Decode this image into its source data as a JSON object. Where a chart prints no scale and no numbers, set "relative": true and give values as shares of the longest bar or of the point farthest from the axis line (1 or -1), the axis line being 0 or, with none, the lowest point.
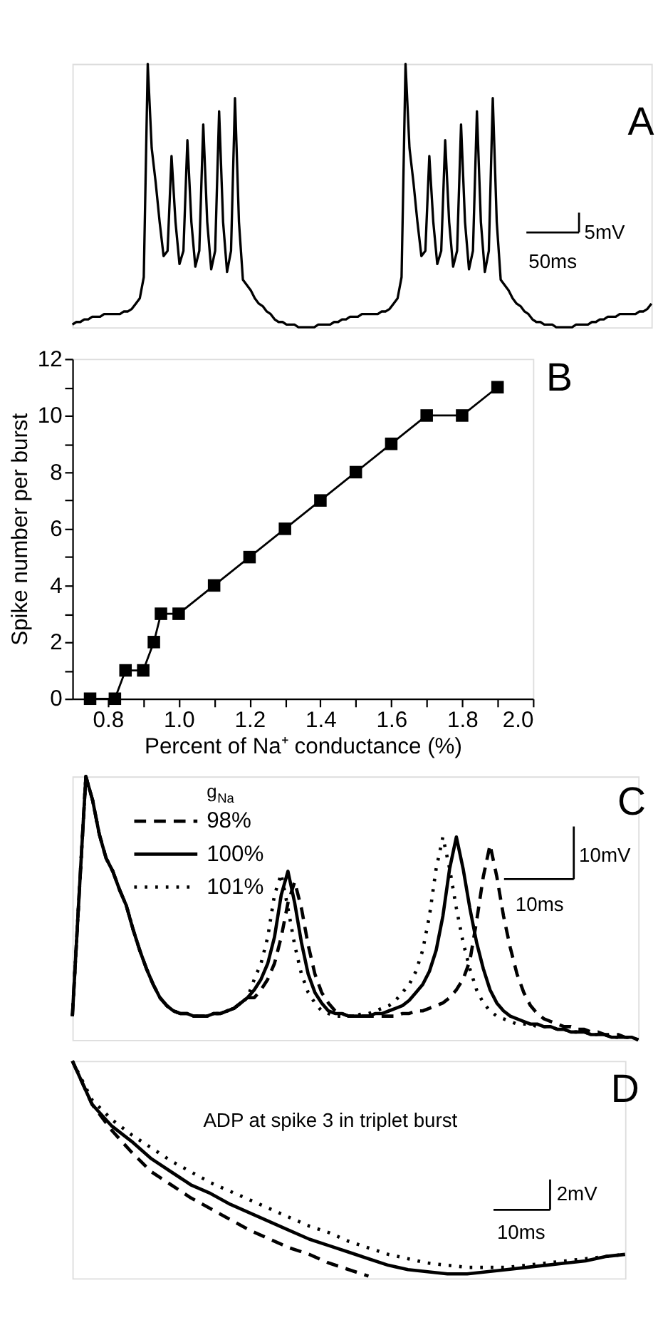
{
  "chart_data": [
    {
      "type": "line",
      "relative": true,
      "annotations": [
        "A",
        "5mV",
        "50ms"
      ],
      "categories": [
        null,
        null,
        null,
        null,
        null,
        null,
        null,
        null,
        null,
        null,
        null,
        null,
        null,
        null,
        null,
        null,
        null,
        null,
        null,
        null,
        null,
        null,
        null,
        null,
        null,
        null,
        null,
        null,
        null,
        null,
        null,
        null,
        null,
        null,
        null,
        null,
        null,
        null,
        null,
        null,
        null,
        null,
        null,
        null,
        null,
        null,
        null,
        null,
        null,
        null,
        null,
        null,
        null,
        null,
        null,
        null,
        null,
        null,
        null,
        null,
        null,
        null,
        null,
        null,
        null,
        null,
        null,
        null,
        null,
        null,
        null,
        null,
        null,
        null,
        null,
        null,
        null,
        null,
        null,
        null,
        null,
        null,
        null,
        null,
        null,
        null,
        null,
        null,
        null,
        null,
        null,
        null,
        null,
        null,
        null,
        null,
        null,
        null,
        null,
        null,
        null,
        null,
        null,
        null,
        null,
        null,
        null,
        null,
        null,
        null,
        null,
        null,
        null,
        null,
        null,
        null,
        null,
        null,
        null,
        null,
        null,
        null,
        null,
        null,
        null,
        null,
        null,
        null,
        null,
        null,
        null,
        null,
        null,
        null,
        null,
        null,
        null,
        null,
        null,
        null,
        null,
        null,
        null,
        null,
        null,
        null,
        null
      ],
      "series": [
        {
          "color": "#000000",
          "line_style": "solid",
          "values": [
            0.01,
            0.02,
            0.02,
            0.03,
            0.03,
            0.04,
            0.04,
            0.04,
            0.05,
            0.05,
            0.05,
            0.05,
            0.05,
            0.06,
            0.06,
            0.07,
            0.09,
            0.11,
            0.19,
            1,
            0.68,
            0.55,
            0.4,
            0.27,
            0.29,
            0.65,
            0.4,
            0.24,
            0.29,
            0.71,
            0.4,
            0.23,
            0.29,
            0.77,
            0.4,
            0.22,
            0.29,
            0.82,
            0.4,
            0.21,
            0.29,
            0.87,
            0.4,
            0.18,
            0.16,
            0.14,
            0.11,
            0.09,
            0.08,
            0.06,
            0.05,
            0.03,
            0.02,
            0.02,
            0.01,
            0.01,
            0.01,
            0,
            0,
            0,
            0,
            0,
            0.01,
            0.01,
            0.01,
            0.01,
            0.02,
            0.02,
            0.03,
            0.03,
            0.04,
            0.04,
            0.04,
            0.05,
            0.05,
            0.05,
            0.05,
            0.05,
            0.06,
            0.06,
            0.07,
            0.09,
            0.11,
            0.19,
            1,
            0.68,
            0.55,
            0.4,
            0.27,
            0.29,
            0.65,
            0.4,
            0.24,
            0.29,
            0.71,
            0.4,
            0.23,
            0.29,
            0.77,
            0.4,
            0.22,
            0.29,
            0.82,
            0.4,
            0.21,
            0.29,
            0.87,
            0.4,
            0.18,
            0.16,
            0.14,
            0.11,
            0.09,
            0.08,
            0.06,
            0.05,
            0.03,
            0.02,
            0.02,
            0.01,
            0.01,
            0.01,
            0,
            0,
            0,
            0,
            0,
            0.01,
            0.01,
            0.01,
            0.01,
            0.02,
            0.02,
            0.03,
            0.03,
            0.04,
            0.04,
            0.04,
            0.05,
            0.05,
            0.05,
            0.05,
            0.05,
            0.06,
            0.06,
            0.07,
            0.09
          ]
        }
      ]
    },
    {
      "type": "line",
      "marker": "square",
      "color": "#000000",
      "grid": false,
      "annotations": [
        "B"
      ],
      "xlabel": "Percent of Na⁺ conductance (%)",
      "ylabel": "Spike number per burst",
      "x": [
        0.75,
        0.82,
        0.85,
        0.9,
        0.93,
        0.95,
        1.0,
        1.1,
        1.2,
        1.3,
        1.4,
        1.5,
        1.6,
        1.7,
        1.8,
        1.9
      ],
      "values": [
        0,
        0,
        1,
        1,
        2,
        3,
        3,
        4,
        5,
        6,
        7,
        8,
        9,
        10,
        10,
        11
      ],
      "xlim": [
        0.7,
        2.0
      ],
      "ylim": [
        0,
        12
      ],
      "xticks": [
        0.8,
        {
          "value": 0.9,
          "label": null
        },
        {
          "value": 1.0,
          "label": "1.0"
        },
        {
          "value": 1.1,
          "label": null
        },
        1.2,
        {
          "value": 1.3,
          "label": null
        },
        1.4,
        {
          "value": 1.5,
          "label": null
        },
        1.6,
        {
          "value": 1.7,
          "label": null
        },
        1.8,
        {
          "value": 1.9,
          "label": null
        },
        {
          "value": 2.0,
          "label": "2.0"
        }
      ],
      "yticks": [
        0,
        {
          "value": 1,
          "label": null
        },
        2,
        {
          "value": 3,
          "label": null
        },
        4,
        {
          "value": 5,
          "label": null
        },
        6,
        {
          "value": 7,
          "label": null
        },
        8,
        {
          "value": 9,
          "label": null
        },
        10,
        {
          "value": 11,
          "label": null
        },
        12
      ]
    },
    {
      "type": "line",
      "relative": true,
      "legend": "top left",
      "legend_title": "g$_{Na}$",
      "annotations": [
        "C",
        "10mV",
        "10ms"
      ],
      "categories": [
        null,
        null,
        null,
        null,
        null,
        null,
        null,
        null,
        null,
        null,
        null,
        null,
        null,
        null,
        null,
        null,
        null,
        null,
        null,
        null,
        null,
        null,
        null,
        null,
        null,
        null,
        null,
        null,
        null,
        null,
        null,
        null,
        null,
        null,
        null,
        null,
        null,
        null,
        null,
        null,
        null,
        null,
        null,
        null,
        null,
        null,
        null,
        null,
        null,
        null,
        null,
        null,
        null,
        null,
        null,
        null,
        null,
        null,
        null,
        null,
        null,
        null,
        null,
        null,
        null,
        null,
        null,
        null,
        null,
        null,
        null,
        null,
        null,
        null,
        null,
        null,
        null,
        null,
        null,
        null,
        null,
        null,
        null,
        null,
        null
      ],
      "series": [
        {
          "name": "98%",
          "color": "#000000",
          "line_style": "dashed",
          "values": [
            0.09,
            0.55,
            1,
            0.91,
            0.78,
            0.69,
            0.64,
            0.57,
            0.51,
            0.42,
            0.34,
            0.27,
            0.21,
            0.16,
            0.13,
            0.11,
            0.1,
            0.1,
            0.09,
            0.09,
            0.09,
            0.1,
            0.1,
            0.11,
            0.12,
            0.14,
            0.16,
            0.16,
            0.19,
            0.23,
            0.29,
            0.39,
            0.52,
            0.6,
            0.5,
            0.36,
            0.25,
            0.18,
            0.14,
            0.11,
            0.1,
            0.09,
            0.09,
            0.09,
            0.09,
            0.09,
            0.09,
            0.09,
            0.09,
            0.1,
            0.1,
            0.11,
            0.11,
            0.12,
            0.13,
            0.14,
            0.16,
            0.19,
            0.23,
            0.3,
            0.45,
            0.62,
            0.74,
            0.62,
            0.47,
            0.35,
            0.25,
            0.18,
            0.13,
            0.1,
            0.08,
            0.07,
            0.06,
            0.05,
            0.05,
            0.04,
            0.04,
            0.03,
            0.03,
            0.02,
            0.02,
            0.02,
            0.01,
            0.01,
            0
          ]
        },
        {
          "name": "100%",
          "color": "#000000",
          "line_style": "solid",
          "values": [
            0.09,
            0.55,
            1,
            0.91,
            0.78,
            0.69,
            0.64,
            0.57,
            0.51,
            0.42,
            0.34,
            0.27,
            0.21,
            0.16,
            0.13,
            0.11,
            0.1,
            0.1,
            0.09,
            0.09,
            0.09,
            0.1,
            0.1,
            0.11,
            0.12,
            0.14,
            0.16,
            0.19,
            0.23,
            0.29,
            0.39,
            0.55,
            0.64,
            0.52,
            0.37,
            0.25,
            0.18,
            0.14,
            0.11,
            0.1,
            0.1,
            0.09,
            0.09,
            0.09,
            0.09,
            0.1,
            0.1,
            0.11,
            0.12,
            0.13,
            0.15,
            0.18,
            0.21,
            0.26,
            0.34,
            0.47,
            0.65,
            0.77,
            0.65,
            0.5,
            0.37,
            0.27,
            0.19,
            0.14,
            0.11,
            0.09,
            0.08,
            0.07,
            0.06,
            0.06,
            0.05,
            0.05,
            0.04,
            0.04,
            0.03,
            0.03,
            0.03,
            0.02,
            0.02,
            0.02,
            0.01,
            0.01,
            0.01,
            0.01,
            0
          ]
        },
        {
          "name": "101%",
          "color": "#000000",
          "line_style": "dotted",
          "values": [
            0.09,
            0.55,
            1,
            0.91,
            0.78,
            0.69,
            0.64,
            0.57,
            0.51,
            0.42,
            0.34,
            0.27,
            0.21,
            0.16,
            0.13,
            0.11,
            0.1,
            0.1,
            0.09,
            0.09,
            0.09,
            0.1,
            0.1,
            0.11,
            0.12,
            0.14,
            0.16,
            0.23,
            0.29,
            0.39,
            0.55,
            0.63,
            0.5,
            0.36,
            0.25,
            0.18,
            0.14,
            0.11,
            0.1,
            0.09,
            0.09,
            0.09,
            0.09,
            0.1,
            0.1,
            0.11,
            0.12,
            0.13,
            0.15,
            0.18,
            0.21,
            0.26,
            0.34,
            0.47,
            0.65,
            0.77,
            0.65,
            0.5,
            0.37,
            0.27,
            0.19,
            0.14,
            0.11,
            0.09,
            0.08,
            0.07,
            0.06,
            0.06,
            0.06,
            0.05,
            0.05,
            0.05,
            0.04,
            0.04,
            0.03,
            0.03,
            0.03,
            0.02,
            0.02,
            0.02,
            0.01,
            0.01,
            0.01,
            0.01,
            0
          ]
        }
      ]
    },
    {
      "type": "line",
      "relative": true,
      "annotations": [
        "D",
        "ADP at spike 3 in triplet burst",
        "2mV",
        "10ms"
      ],
      "categories": [
        null,
        null,
        null,
        null,
        null,
        null,
        null,
        null,
        null,
        null,
        null,
        null,
        null,
        null,
        null,
        null,
        null,
        null,
        null,
        null,
        null,
        null,
        null,
        null,
        null,
        null,
        null,
        null,
        null
      ],
      "series": [
        {
          "color": "#000000",
          "line_style": "dashed",
          "values": [
            1,
            0.8,
            0.68,
            0.58,
            0.49,
            0.43,
            0.37,
            0.32,
            0.27,
            0.22,
            0.18,
            0.14,
            0.11,
            0.07,
            0.04,
            0.01,
            null,
            null,
            null,
            null,
            null,
            null,
            null,
            null,
            null,
            null,
            null,
            null,
            null
          ]
        },
        {
          "color": "#000000",
          "line_style": "solid",
          "values": [
            1,
            0.8,
            0.7,
            0.63,
            0.55,
            0.49,
            0.43,
            0.39,
            0.34,
            0.3,
            0.26,
            0.22,
            0.18,
            0.15,
            0.12,
            0.09,
            0.06,
            0.04,
            0.03,
            0.02,
            0.02,
            0.03,
            0.04,
            0.05,
            0.06,
            0.07,
            0.08,
            0.1,
            0.11
          ]
        },
        {
          "color": "#000000",
          "line_style": "dotted",
          "values": [
            1,
            0.82,
            0.73,
            0.66,
            0.6,
            0.54,
            0.49,
            0.44,
            0.4,
            0.36,
            0.32,
            0.28,
            0.24,
            0.21,
            0.17,
            0.14,
            0.11,
            0.09,
            0.07,
            0.06,
            0.05,
            0.05,
            0.05,
            0.06,
            0.07,
            0.08,
            0.09,
            0.1,
            0.11
          ]
        }
      ]
    }
  ]
}
